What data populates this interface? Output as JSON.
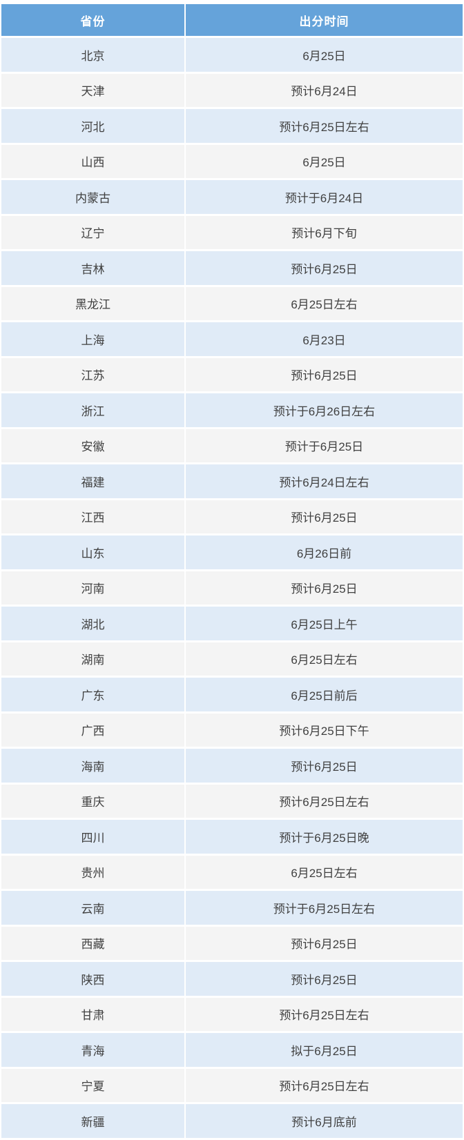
{
  "colors": {
    "header_bg": "#65a3da",
    "row_alt_blue": "#e0ebf7",
    "row_alt_gray": "#f4f4f4",
    "header_text": "#ffffff",
    "body_text": "#404040"
  },
  "table": {
    "columns": [
      "省份",
      "出分时间"
    ],
    "rows": [
      {
        "province": "北京",
        "time": "6月25日"
      },
      {
        "province": "天津",
        "time": "预计6月24日"
      },
      {
        "province": "河北",
        "time": "预计6月25日左右"
      },
      {
        "province": "山西",
        "time": "6月25日"
      },
      {
        "province": "内蒙古",
        "time": "预计于6月24日"
      },
      {
        "province": "辽宁",
        "time": "预计6月下旬"
      },
      {
        "province": "吉林",
        "time": "预计6月25日"
      },
      {
        "province": "黑龙江",
        "time": "6月25日左右"
      },
      {
        "province": "上海",
        "time": "6月23日"
      },
      {
        "province": "江苏",
        "time": "预计6月25日"
      },
      {
        "province": "浙江",
        "time": "预计于6月26日左右"
      },
      {
        "province": "安徽",
        "time": "预计于6月25日"
      },
      {
        "province": "福建",
        "time": "预计6月24日左右"
      },
      {
        "province": "江西",
        "time": "预计6月25日"
      },
      {
        "province": "山东",
        "time": "6月26日前"
      },
      {
        "province": "河南",
        "time": "预计6月25日"
      },
      {
        "province": "湖北",
        "time": "6月25日上午"
      },
      {
        "province": "湖南",
        "time": "6月25日左右"
      },
      {
        "province": "广东",
        "time": "6月25日前后"
      },
      {
        "province": "广西",
        "time": "预计6月25日下午"
      },
      {
        "province": "海南",
        "time": "预计6月25日"
      },
      {
        "province": "重庆",
        "time": "预计6月25日左右"
      },
      {
        "province": "四川",
        "time": "预计于6月25日晚"
      },
      {
        "province": "贵州",
        "time": "6月25日左右"
      },
      {
        "province": "云南",
        "time": "预计于6月25日左右"
      },
      {
        "province": "西藏",
        "time": "预计6月25日"
      },
      {
        "province": "陕西",
        "time": "预计6月25日"
      },
      {
        "province": "甘肃",
        "time": "预计6月25日左右"
      },
      {
        "province": "青海",
        "time": "拟于6月25日"
      },
      {
        "province": "宁夏",
        "time": "预计6月25日左右"
      },
      {
        "province": "新疆",
        "time": "预计6月底前"
      }
    ]
  }
}
